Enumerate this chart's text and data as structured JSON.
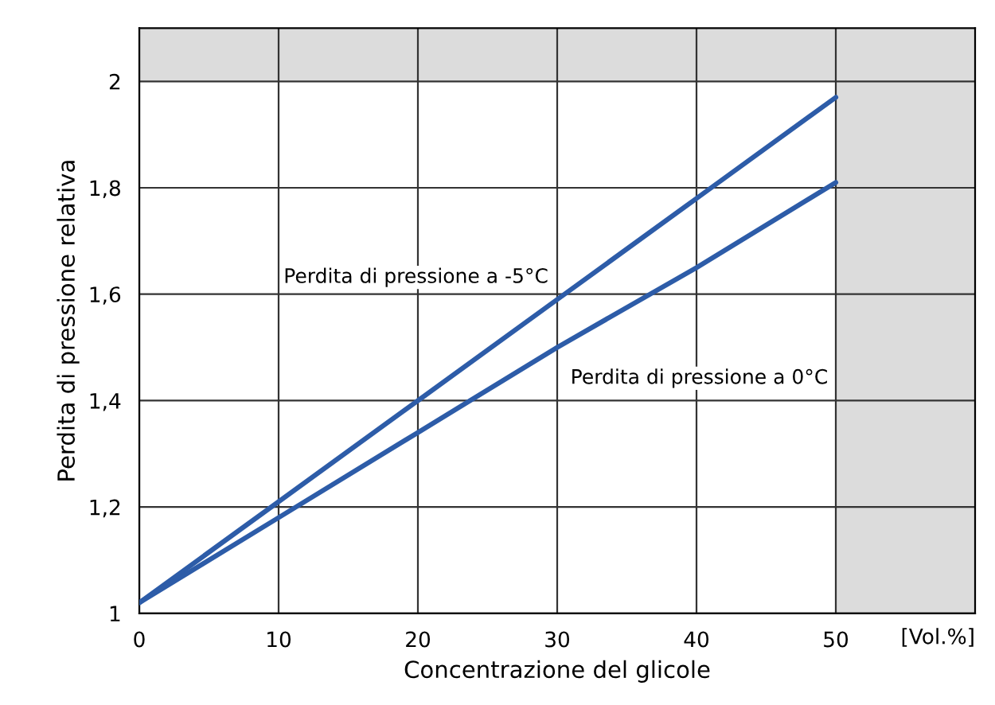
{
  "chart_data": {
    "type": "line",
    "xlabel": "Concentrazione del glicole",
    "ylabel": "Perdita di pressione relativa",
    "x": [
      0,
      10,
      20,
      30,
      40,
      50
    ],
    "series": [
      {
        "name": "Perdita di pressione a -5°C",
        "color": "#2d5ca8",
        "values": [
          1.02,
          1.21,
          1.4,
          1.59,
          1.78,
          1.97
        ]
      },
      {
        "name": "Perdita di pressione a 0°C",
        "color": "#2d5ca8",
        "values": [
          1.02,
          1.18,
          1.34,
          1.5,
          1.65,
          1.81
        ]
      }
    ],
    "xlim": [
      0,
      60
    ],
    "xticks": [
      0,
      10,
      20,
      30,
      40,
      50
    ],
    "ylim": [
      1,
      2.1
    ],
    "yticks": [
      {
        "value": 1,
        "label": "1"
      },
      {
        "value": 1.2,
        "label": "1,2"
      },
      {
        "value": 1.4,
        "label": "1,4"
      },
      {
        "value": 1.6,
        "label": "1,6"
      },
      {
        "value": 1.8,
        "label": "1,8"
      },
      {
        "value": 2,
        "label": "2"
      }
    ],
    "grid": true,
    "legend": false,
    "marker": "none",
    "line_style": "solid",
    "bands": [
      {
        "axis": "x",
        "from": 50,
        "to": 60,
        "color": "#dcdcdc"
      },
      {
        "axis": "y",
        "from": 2,
        "to": 2.1,
        "color": "#dcdcdc"
      }
    ],
    "annotations": [
      "[Vol.%]"
    ]
  }
}
